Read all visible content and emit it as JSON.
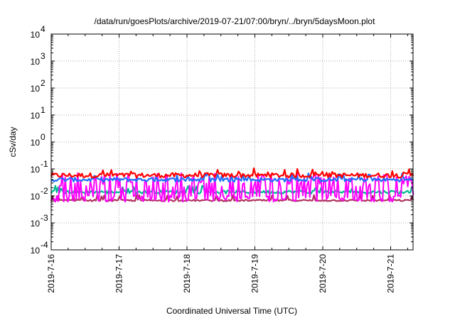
{
  "chart_data": {
    "type": "line",
    "title": "/data/run/goesPlots/archive/2019-07-21/07:00/bryn/../bryn/5daysMoon.plot",
    "xlabel": "Coordinated Universal Time (UTC)",
    "ylabel": "cSv/day",
    "y_scale": "log",
    "ylim": [
      0.0001,
      10000
    ],
    "xlim": [
      "2019-07-16",
      "2019-07-21 08:00"
    ],
    "grid": true,
    "y_ticks": [
      {
        "exp": "-4",
        "value": 0.0001
      },
      {
        "exp": "-3",
        "value": 0.001
      },
      {
        "exp": "-2",
        "value": 0.01
      },
      {
        "exp": "-1",
        "value": 0.1
      },
      {
        "exp": "0",
        "value": 1
      },
      {
        "exp": "1",
        "value": 10
      },
      {
        "exp": "2",
        "value": 100
      },
      {
        "exp": "3",
        "value": 1000
      },
      {
        "exp": "4",
        "value": 10000
      }
    ],
    "y_tick_base": "10",
    "x_ticks": [
      "2019-7-16",
      "2019-7-17",
      "2019-7-18",
      "2019-7-19",
      "2019-7-20",
      "2019-7-21"
    ],
    "series": [
      {
        "color": "#ff0000",
        "base": 0.058,
        "noise": 0.35
      },
      {
        "color": "#1f6fff",
        "base": 0.04,
        "noise": 0.3
      },
      {
        "color": "#00b894",
        "base": 0.014,
        "noise": 0.25
      },
      {
        "color": "#ff00ff",
        "base": 0.008,
        "noise": 1.0
      },
      {
        "color": "#b03060",
        "base": 0.0068,
        "noise": 0.12
      }
    ]
  }
}
